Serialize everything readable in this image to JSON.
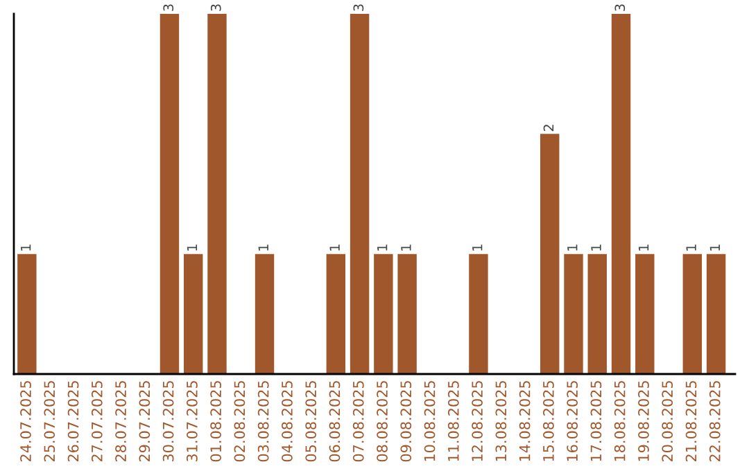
{
  "chart_data": {
    "type": "bar",
    "categories": [
      "24.07.2025",
      "25.07.2025",
      "26.07.2025",
      "27.07.2025",
      "28.07.2025",
      "29.07.2025",
      "30.07.2025",
      "31.07.2025",
      "01.08.2025",
      "02.08.2025",
      "03.08.2025",
      "04.08.2025",
      "05.08.2025",
      "06.08.2025",
      "07.08.2025",
      "08.08.2025",
      "09.08.2025",
      "10.08.2025",
      "11.08.2025",
      "12.08.2025",
      "13.08.2025",
      "14.08.2025",
      "15.08.2025",
      "16.08.2025",
      "17.08.2025",
      "18.08.2025",
      "19.08.2025",
      "20.08.2025",
      "21.08.2025",
      "22.08.2025"
    ],
    "values": [
      1,
      0,
      0,
      0,
      0,
      0,
      3,
      1,
      3,
      0,
      1,
      0,
      0,
      1,
      3,
      1,
      1,
      0,
      0,
      1,
      0,
      0,
      2,
      1,
      1,
      3,
      1,
      0,
      1,
      1
    ],
    "value_labels": [
      "1",
      null,
      null,
      null,
      null,
      null,
      "3",
      "1",
      "3",
      null,
      "1",
      null,
      null,
      "1",
      "3",
      "1",
      "1",
      null,
      null,
      "1",
      null,
      null,
      "2",
      "1",
      "1",
      "3",
      "1",
      null,
      "1",
      "1"
    ],
    "color": "#a0572b",
    "grid": false,
    "legend": false
  }
}
